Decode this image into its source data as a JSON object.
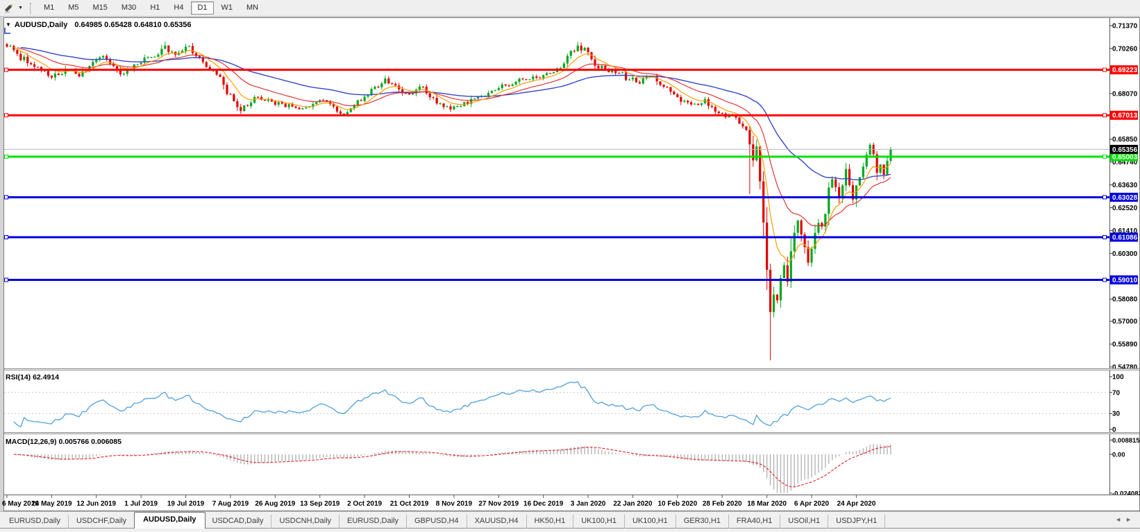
{
  "toolbar": {
    "timeframes": [
      "M1",
      "M5",
      "M15",
      "M30",
      "H1",
      "H4",
      "D1",
      "W1",
      "MN"
    ],
    "active_timeframe": "D1",
    "caret": "▼"
  },
  "chart": {
    "title": "AUDUSD,Daily",
    "ohlc_line": "0.64985 0.65428 0.64810 0.65356",
    "dropdown_triangle": "▼",
    "price_axis_ticks": [
      "0.71370",
      "0.70260",
      "0.68070",
      "0.65850",
      "0.64740",
      "0.63630",
      "0.62520",
      "0.61410",
      "0.60300",
      "0.58080",
      "0.57000",
      "0.55890",
      "0.54780"
    ],
    "axis_range": {
      "top_price": 0.7137,
      "bottom_price": 0.5478
    },
    "current_price": {
      "label": "0.65356",
      "value": 0.65356,
      "badge_bg": "#000000",
      "line_color": "#b4b4b4"
    },
    "hlines": [
      {
        "value": 0.69223,
        "label": "0.69223",
        "color": "#ff0000"
      },
      {
        "value": 0.67013,
        "label": "0.67013",
        "color": "#ff0000"
      },
      {
        "value": 0.65003,
        "label": "0.65003",
        "color": "#00e000"
      },
      {
        "value": 0.63028,
        "label": "0.63028",
        "color": "#0000e0"
      },
      {
        "value": 0.61086,
        "label": "0.61086",
        "color": "#0000e0"
      },
      {
        "value": 0.5901,
        "label": "0.59010",
        "color": "#0000e0"
      }
    ],
    "date_labels": [
      "6 May 2019",
      "24 May 2019",
      "12 Jun 2019",
      "1 Jul 2019",
      "19 Jul 2019",
      "7 Aug 2019",
      "26 Aug 2019",
      "13 Sep 2019",
      "2 Oct 2019",
      "21 Oct 2019",
      "8 Nov 2019",
      "27 Nov 2019",
      "16 Dec 2019",
      "3 Jan 2020",
      "22 Jan 2020",
      "10 Feb 2020",
      "28 Feb 2020",
      "18 Mar 2020",
      "6 Apr 2020",
      "24 Apr 2020"
    ],
    "candle_count": 258,
    "close_anchors": [
      [
        0,
        0.7035
      ],
      [
        3,
        0.7
      ],
      [
        6,
        0.6955
      ],
      [
        10,
        0.692
      ],
      [
        13,
        0.6885
      ],
      [
        17,
        0.6925
      ],
      [
        21,
        0.689
      ],
      [
        25,
        0.696
      ],
      [
        28,
        0.699
      ],
      [
        31,
        0.694
      ],
      [
        34,
        0.6903
      ],
      [
        38,
        0.695
      ],
      [
        42,
        0.6985
      ],
      [
        46,
        0.704
      ],
      [
        49,
        0.6995
      ],
      [
        53,
        0.7038
      ],
      [
        57,
        0.696
      ],
      [
        60,
        0.692
      ],
      [
        63,
        0.685
      ],
      [
        66,
        0.677
      ],
      [
        68,
        0.6722
      ],
      [
        71,
        0.6762
      ],
      [
        73,
        0.679
      ],
      [
        77,
        0.6768
      ],
      [
        80,
        0.6758
      ],
      [
        83,
        0.6744
      ],
      [
        86,
        0.6735
      ],
      [
        89,
        0.6756
      ],
      [
        92,
        0.6775
      ],
      [
        95,
        0.6744
      ],
      [
        98,
        0.6706
      ],
      [
        101,
        0.6752
      ],
      [
        104,
        0.6792
      ],
      [
        107,
        0.684
      ],
      [
        110,
        0.688
      ],
      [
        113,
        0.6846
      ],
      [
        116,
        0.6808
      ],
      [
        119,
        0.6826
      ],
      [
        121,
        0.684
      ],
      [
        124,
        0.6786
      ],
      [
        127,
        0.6742
      ],
      [
        129,
        0.673
      ],
      [
        132,
        0.6746
      ],
      [
        134,
        0.6757
      ],
      [
        137,
        0.679
      ],
      [
        140,
        0.681
      ],
      [
        142,
        0.6824
      ],
      [
        145,
        0.6846
      ],
      [
        148,
        0.6864
      ],
      [
        151,
        0.6875
      ],
      [
        154,
        0.6884
      ],
      [
        157,
        0.6906
      ],
      [
        160,
        0.693
      ],
      [
        163,
        0.699
      ],
      [
        166,
        0.704
      ],
      [
        169,
        0.7008
      ],
      [
        171,
        0.6942
      ],
      [
        174,
        0.6926
      ],
      [
        178,
        0.6906
      ],
      [
        181,
        0.6876
      ],
      [
        183,
        0.6862
      ],
      [
        185,
        0.688
      ],
      [
        187,
        0.689
      ],
      [
        189,
        0.6866
      ],
      [
        191,
        0.684
      ],
      [
        193,
        0.6816
      ],
      [
        195,
        0.679
      ],
      [
        197,
        0.6772
      ],
      [
        200,
        0.6757
      ],
      [
        203,
        0.678
      ],
      [
        205,
        0.6742
      ],
      [
        207,
        0.6712
      ],
      [
        209,
        0.6692
      ],
      [
        211,
        0.6702
      ],
      [
        213,
        0.666
      ],
      [
        215,
        0.663
      ],
      [
        216,
        0.656
      ],
      [
        217,
        0.6482
      ],
      [
        218,
        0.655
      ],
      [
        219,
        0.638
      ],
      [
        220,
        0.618
      ],
      [
        221,
        0.595
      ],
      [
        222,
        0.5745
      ],
      [
        223,
        0.583
      ],
      [
        224,
        0.5802
      ],
      [
        225,
        0.591
      ],
      [
        226,
        0.5972
      ],
      [
        227,
        0.5892
      ],
      [
        228,
        0.604
      ],
      [
        229,
        0.613
      ],
      [
        230,
        0.619
      ],
      [
        231,
        0.6122
      ],
      [
        232,
        0.606
      ],
      [
        233,
        0.5985
      ],
      [
        234,
        0.6052
      ],
      [
        235,
        0.613
      ],
      [
        236,
        0.6178
      ],
      [
        237,
        0.616
      ],
      [
        238,
        0.6222
      ],
      [
        239,
        0.635
      ],
      [
        240,
        0.639
      ],
      [
        241,
        0.6352
      ],
      [
        242,
        0.6302
      ],
      [
        243,
        0.636
      ],
      [
        244,
        0.644
      ],
      [
        245,
        0.6362
      ],
      [
        246,
        0.6292
      ],
      [
        247,
        0.636
      ],
      [
        248,
        0.64
      ],
      [
        249,
        0.6452
      ],
      [
        250,
        0.651
      ],
      [
        251,
        0.6558
      ],
      [
        252,
        0.6512
      ],
      [
        253,
        0.6422
      ],
      [
        254,
        0.6462
      ],
      [
        255,
        0.6412
      ],
      [
        256,
        0.648
      ],
      [
        257,
        0.65356
      ]
    ],
    "wick_overrides": [
      {
        "i": 216,
        "low": 0.6318
      },
      {
        "i": 222,
        "low": 0.551
      },
      {
        "i": 166,
        "high": 0.7058
      },
      {
        "i": 46,
        "high": 0.706
      }
    ],
    "colors": {
      "bull": "#00a81e",
      "bear": "#e00000",
      "ma_fast": "#ff9c00",
      "ma_mid": "#e03434",
      "ma_slow": "#3344cc"
    }
  },
  "rsi": {
    "label": "RSI(14) 62.4914",
    "axis_ticks": [
      "100",
      "70",
      "30",
      "0"
    ],
    "levels": [
      70,
      30
    ],
    "line_color": "#4fa0dc"
  },
  "macd": {
    "label": "MACD(12,26,9) 0.005766 0.006085",
    "axis_ticks": [
      "0.008815",
      "0.00",
      "-0.024082"
    ],
    "axis_values": [
      0.008815,
      0.0,
      -0.024082
    ],
    "histogram_color": "#b4b4b4",
    "signal_color": "#e02020"
  },
  "tabs": {
    "items": [
      "EURUSD,Daily",
      "USDCHF,Daily",
      "AUDUSD,Daily",
      "USDCAD,Daily",
      "USDCNH,Daily",
      "EURUSD,Daily",
      "GBPUSD,H4",
      "XAUUSD,H4",
      "HK50,H1",
      "UK100,H1",
      "UK100,H1",
      "GER30,H1",
      "FRA40,H1",
      "USOil,H1",
      "USDJPY,H1"
    ],
    "active_index": 2,
    "scroll_left": "◄",
    "scroll_right": "►"
  }
}
